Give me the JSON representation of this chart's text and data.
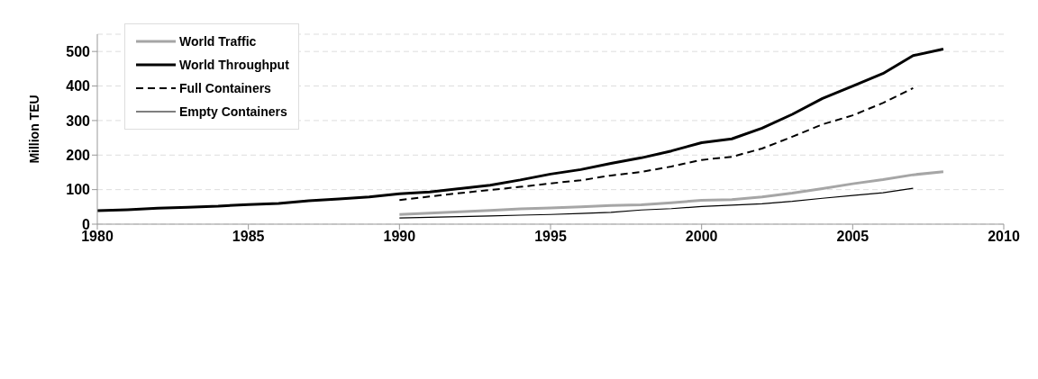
{
  "chart_data": {
    "type": "line",
    "ylabel": "Million TEU",
    "x": [
      1980,
      1981,
      1982,
      1983,
      1984,
      1985,
      1986,
      1987,
      1988,
      1989,
      1990,
      1991,
      1992,
      1993,
      1994,
      1995,
      1996,
      1997,
      1998,
      1999,
      2000,
      2001,
      2002,
      2003,
      2004,
      2005,
      2006,
      2007,
      2008
    ],
    "series": [
      {
        "name": "World Traffic",
        "color": "#a6a6a6",
        "line_style": "solid",
        "values": [
          null,
          null,
          null,
          null,
          null,
          null,
          null,
          null,
          null,
          null,
          28,
          32,
          36,
          40,
          44,
          47,
          50,
          54,
          56,
          62,
          69,
          71,
          79,
          90,
          103,
          117,
          129,
          143,
          152
        ]
      },
      {
        "name": "World Throughput",
        "color": "#000000",
        "line_style": "solid",
        "values": [
          39,
          42,
          46,
          49,
          52,
          57,
          60,
          68,
          73,
          79,
          88,
          93,
          103,
          113,
          128,
          145,
          158,
          176,
          192,
          212,
          236,
          247,
          278,
          318,
          364,
          400,
          436,
          488,
          507
        ]
      },
      {
        "name": "Full Containers",
        "color": "#000000",
        "line_style": "dashed",
        "values": [
          null,
          null,
          null,
          null,
          null,
          null,
          null,
          null,
          null,
          null,
          70,
          80,
          90,
          99,
          108,
          118,
          127,
          141,
          151,
          167,
          186,
          195,
          219,
          253,
          289,
          315,
          351,
          394,
          null
        ]
      },
      {
        "name": "Empty Containers",
        "color": "#000000",
        "line_style": "solid",
        "values": [
          null,
          null,
          null,
          null,
          null,
          null,
          null,
          null,
          null,
          null,
          18,
          20,
          22,
          24,
          26,
          28,
          31,
          34,
          41,
          45,
          51,
          55,
          59,
          66,
          75,
          83,
          91,
          104,
          null
        ]
      }
    ],
    "xlim": [
      1980,
      2010
    ],
    "xticks": [
      1980,
      1985,
      1990,
      1995,
      2000,
      2005,
      2010
    ],
    "ylim": [
      0,
      550
    ],
    "yticks": [
      0,
      100,
      200,
      300,
      400,
      500
    ],
    "grid": "y",
    "legend": "top left",
    "marker": "none"
  }
}
